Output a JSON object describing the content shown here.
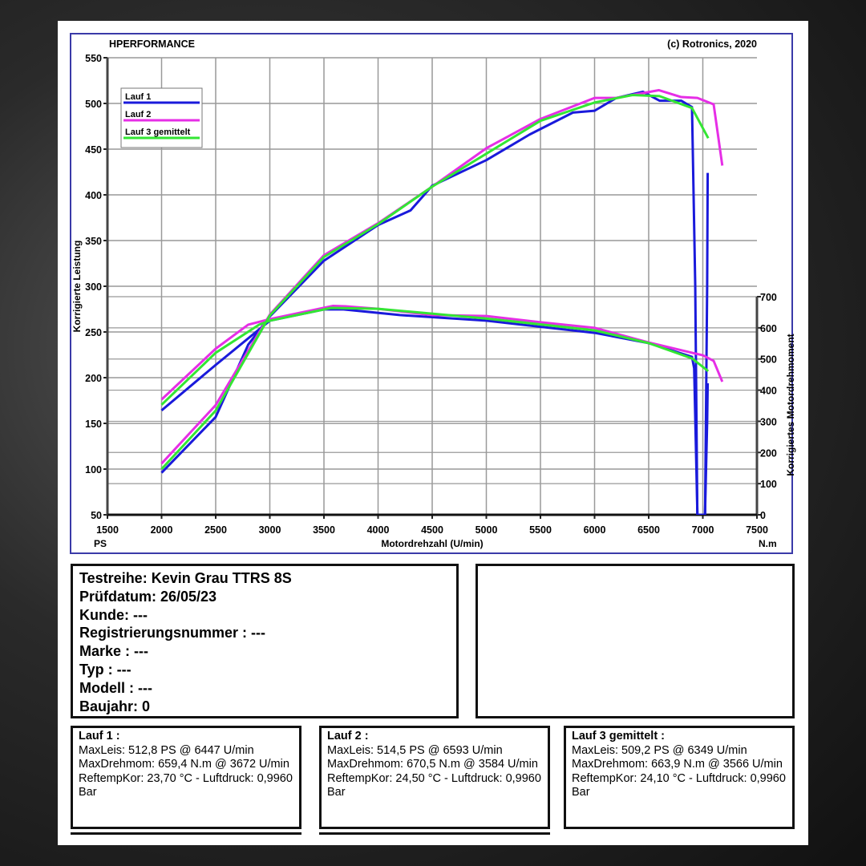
{
  "header": {
    "brand": "HPERFORMANCE",
    "copyright": "(c) Rotronics, 2020"
  },
  "chart_data": {
    "type": "line",
    "xlabel": "Motordrehzahl (U/min)",
    "ylabel": "Korrigierte Leistung",
    "y2label": "Korrigiertes Motordrehmoment",
    "xunit_left": "PS",
    "xunit_right": "N.m",
    "xlim": [
      1500,
      7500
    ],
    "ylim": [
      50,
      550
    ],
    "y2lim": [
      0,
      700
    ],
    "xticks": [
      1500,
      2000,
      2500,
      3000,
      3500,
      4000,
      4500,
      5000,
      5500,
      6000,
      6500,
      7000,
      7500
    ],
    "yticks": [
      50,
      100,
      150,
      200,
      250,
      300,
      350,
      400,
      450,
      500,
      550
    ],
    "y2ticks": [
      0,
      100,
      200,
      300,
      400,
      500,
      600,
      700
    ],
    "grid": true,
    "legend_position": "top-left",
    "series": [
      {
        "name": "Lauf 1",
        "color": "#1a1adb",
        "power": [
          [
            2000,
            96
          ],
          [
            2500,
            157
          ],
          [
            2800,
            236
          ],
          [
            3000,
            267
          ],
          [
            3500,
            328
          ],
          [
            4000,
            367
          ],
          [
            4300,
            383
          ],
          [
            4500,
            410
          ],
          [
            5000,
            438
          ],
          [
            5400,
            466
          ],
          [
            5800,
            490
          ],
          [
            6000,
            492
          ],
          [
            6200,
            506
          ],
          [
            6447,
            512.8
          ],
          [
            6600,
            503
          ],
          [
            6800,
            503
          ],
          [
            6900,
            496
          ],
          [
            6930,
            300
          ],
          [
            6950,
            40
          ],
          [
            7020,
            40
          ],
          [
            7040,
            300
          ],
          [
            7045,
            424
          ]
        ],
        "torque": [
          [
            2000,
            335
          ],
          [
            2500,
            481
          ],
          [
            3000,
            623
          ],
          [
            3500,
            659
          ],
          [
            3672,
            659.4
          ],
          [
            4200,
            641
          ],
          [
            5000,
            623
          ],
          [
            6000,
            584
          ],
          [
            6500,
            551
          ],
          [
            6900,
            507
          ],
          [
            6920,
            470
          ],
          [
            6950,
            0
          ],
          [
            7020,
            0
          ],
          [
            7040,
            300
          ],
          [
            7045,
            422
          ]
        ]
      },
      {
        "name": "Lauf 2",
        "color": "#e62ee6",
        "power": [
          [
            2000,
            106
          ],
          [
            2500,
            170
          ],
          [
            3000,
            269
          ],
          [
            3500,
            334
          ],
          [
            4000,
            369
          ],
          [
            4500,
            409
          ],
          [
            5000,
            451
          ],
          [
            5500,
            483
          ],
          [
            6000,
            506
          ],
          [
            6200,
            506
          ],
          [
            6593,
            514.5
          ],
          [
            6800,
            507
          ],
          [
            6950,
            506
          ],
          [
            7100,
            499
          ],
          [
            7180,
            432
          ]
        ],
        "torque": [
          [
            2000,
            370
          ],
          [
            2500,
            533
          ],
          [
            2800,
            610
          ],
          [
            3000,
            628
          ],
          [
            3584,
            670.5
          ],
          [
            3700,
            669
          ],
          [
            4000,
            661
          ],
          [
            4500,
            641
          ],
          [
            5000,
            638
          ],
          [
            5500,
            618
          ],
          [
            6000,
            600
          ],
          [
            6500,
            553
          ],
          [
            6900,
            520
          ],
          [
            7000,
            512
          ],
          [
            7100,
            494
          ],
          [
            7180,
            427
          ]
        ]
      },
      {
        "name": "Lauf 3 gemittelt",
        "color": "#33e633",
        "power": [
          [
            2000,
            100
          ],
          [
            2500,
            164
          ],
          [
            3000,
            268
          ],
          [
            3500,
            332
          ],
          [
            4000,
            368
          ],
          [
            4500,
            409
          ],
          [
            5000,
            445
          ],
          [
            5500,
            481
          ],
          [
            6000,
            501
          ],
          [
            6349,
            509.2
          ],
          [
            6600,
            508
          ],
          [
            6900,
            495
          ],
          [
            7050,
            462
          ]
        ],
        "torque": [
          [
            2000,
            353
          ],
          [
            2500,
            520
          ],
          [
            2900,
            610
          ],
          [
            3000,
            623
          ],
          [
            3566,
            663.9
          ],
          [
            4000,
            661
          ],
          [
            5000,
            630
          ],
          [
            6000,
            592
          ],
          [
            6500,
            551
          ],
          [
            6900,
            502
          ],
          [
            7050,
            461
          ]
        ]
      }
    ]
  },
  "info": {
    "testreihe": "Testreihe: Kevin Grau TTRS 8S",
    "pruefdatum": "Prüfdatum: 26/05/23",
    "kunde": "Kunde: ---",
    "registrierung": "Registrierungsnummer  : ---",
    "marke": "Marke  : ---",
    "typ": "Typ  : ---",
    "modell": "Modell  : ---",
    "baujahr": "Baujahr: 0"
  },
  "runs": [
    {
      "title": "Lauf 1 :",
      "maxleis": "MaxLeis: 512,8 PS @ 6447 U/min",
      "maxdreh": "MaxDrehmom: 659,4 N.m @ 3672 U/min",
      "reftemp": "ReftempKor: 23,70 °C - Luftdruck: 0,9960 Bar"
    },
    {
      "title": "Lauf 2 :",
      "maxleis": "MaxLeis: 514,5 PS @ 6593 U/min",
      "maxdreh": "MaxDrehmom: 670,5 N.m @ 3584 U/min",
      "reftemp": "ReftempKor: 24,50 °C - Luftdruck: 0,9960 Bar"
    },
    {
      "title": "Lauf 3 gemittelt :",
      "maxleis": "MaxLeis: 509,2 PS @ 6349 U/min",
      "maxdreh": "MaxDrehmom: 663,9 N.m @ 3566 U/min",
      "reftemp": "ReftempKor: 24,10 °C - Luftdruck: 0,9960 Bar"
    }
  ]
}
